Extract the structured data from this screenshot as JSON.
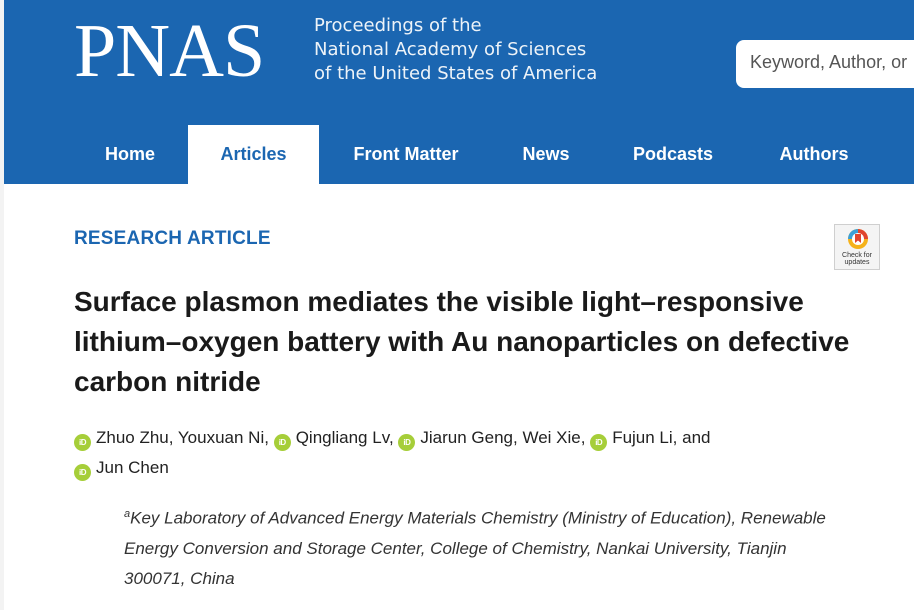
{
  "header": {
    "logo": "PNAS",
    "tagline": [
      "Proceedings of the",
      "National Academy of Sciences",
      "of the United States of America"
    ],
    "search_placeholder": "Keyword, Author, or"
  },
  "nav": {
    "items": [
      {
        "label": "Home"
      },
      {
        "label": "Articles"
      },
      {
        "label": "Front Matter"
      },
      {
        "label": "News"
      },
      {
        "label": "Podcasts"
      },
      {
        "label": "Authors"
      }
    ],
    "active": "Articles"
  },
  "article": {
    "type": "RESEARCH ARTICLE",
    "crossmark_label": "Check for updates",
    "title": "Surface plasmon mediates the visible light–responsive lithium–oxygen battery with Au nanoparticles on defective carbon nitride",
    "orcid_badge": "iD",
    "authors": [
      {
        "name": "Zhuo Zhu",
        "sep": ", ",
        "orcid": true
      },
      {
        "name": "Youxuan Ni",
        "sep": ", ",
        "orcid": false
      },
      {
        "name": "Qingliang Lv",
        "sep": ", ",
        "orcid": true
      },
      {
        "name": "Jiarun Geng",
        "sep": ", ",
        "orcid": true
      },
      {
        "name": "Wei Xie",
        "sep": ", ",
        "orcid": false
      },
      {
        "name": "Fujun Li",
        "sep": ", and ",
        "orcid": true
      },
      {
        "name": "Jun Chen",
        "sep": "",
        "orcid": true
      }
    ],
    "affiliation": {
      "marker": "a",
      "text": "Key Laboratory of Advanced Energy Materials Chemistry (Ministry of Education), Renewable Energy Conversion and Storage Center, College of Chemistry, Nankai University, Tianjin 300071, China"
    }
  },
  "colors": {
    "brand_blue": "#1b66b1",
    "orcid_green": "#a6ce39"
  }
}
